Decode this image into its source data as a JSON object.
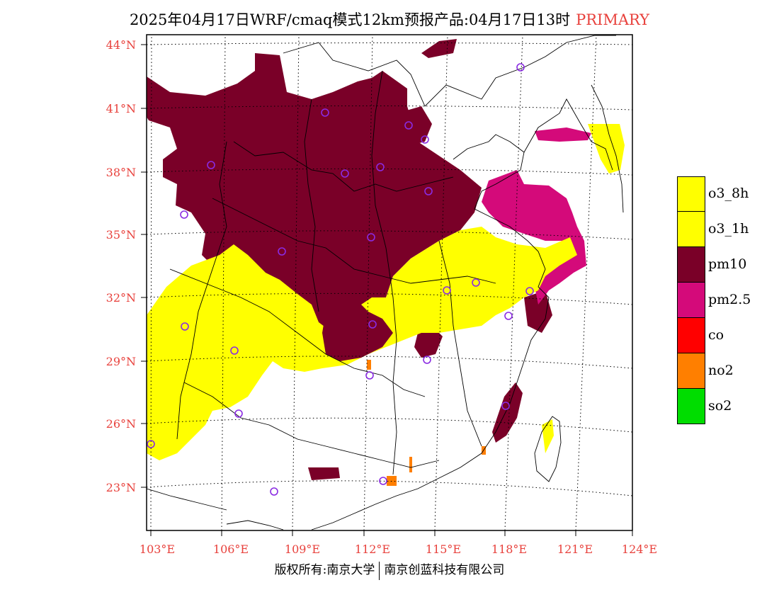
{
  "title": {
    "main": "2025年04月17日WRF/cmaq模式12km预报产品:04月17日13时",
    "tag": "PRIMARY"
  },
  "axes": {
    "lat_labels": [
      "44°N",
      "41°N",
      "38°N",
      "35°N",
      "32°N",
      "29°N",
      "26°N",
      "23°N"
    ],
    "lon_labels": [
      "103°E",
      "106°E",
      "109°E",
      "112°E",
      "115°E",
      "118°E",
      "121°E",
      "124°E"
    ]
  },
  "legend": [
    {
      "label": "o3_8h",
      "color": "#ffff00"
    },
    {
      "label": "o3_1h",
      "color": "#ffff00"
    },
    {
      "label": "pm10",
      "color": "#7a0028"
    },
    {
      "label": "pm2.5",
      "color": "#d40a7a"
    },
    {
      "label": "co",
      "color": "#ff0000"
    },
    {
      "label": "no2",
      "color": "#ff7f00"
    },
    {
      "label": "so2",
      "color": "#00dd00"
    }
  ],
  "credit": {
    "left": "版权所有:南京大学",
    "right": "南京创蓝科技有限公司"
  },
  "colors": {
    "axis": "#e8413c",
    "pm10": "#7a0028",
    "pm25": "#d40a7a",
    "o3": "#ffff00",
    "no2": "#ff7f00",
    "station": "#8a2be2"
  }
}
